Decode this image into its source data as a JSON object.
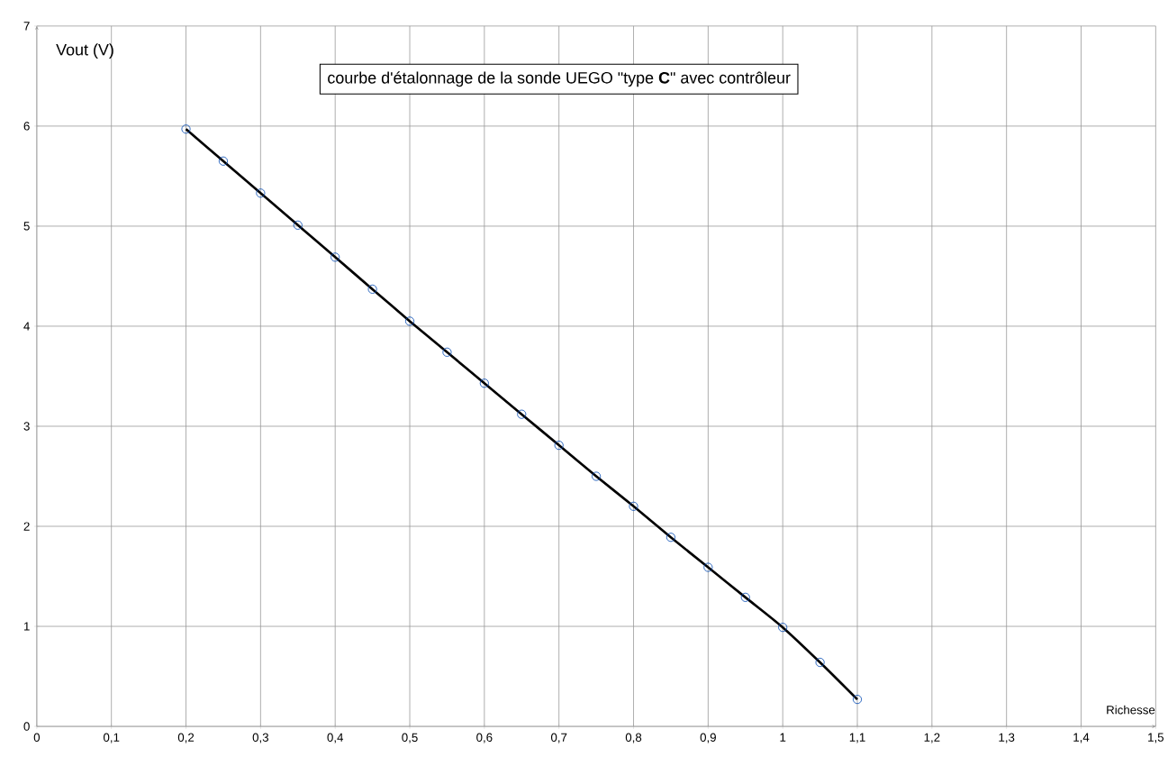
{
  "chart_data": {
    "type": "line",
    "title": "courbe d'étalonnage de la sonde UEGO \"type **C**\" avec contrôleur",
    "xlabel": "Richesse",
    "ylabel": "Vout (V)",
    "x": [
      0.2,
      0.25,
      0.3,
      0.35,
      0.4,
      0.45,
      0.5,
      0.55,
      0.6,
      0.65,
      0.7,
      0.75,
      0.8,
      0.85,
      0.9,
      0.95,
      1.0,
      1.05,
      1.1
    ],
    "series": [
      {
        "color": "#000000",
        "values": [
          5.97,
          5.65,
          5.33,
          5.01,
          4.69,
          4.37,
          4.05,
          3.74,
          3.43,
          3.12,
          2.81,
          2.5,
          2.2,
          1.89,
          1.59,
          1.29,
          0.99,
          0.64,
          0.27
        ]
      }
    ],
    "xlim": [
      0,
      1.5
    ],
    "ylim": [
      0,
      7
    ],
    "xticks": [
      0,
      {
        "value": 0.1,
        "label": "0,1"
      },
      {
        "value": 0.2,
        "label": "0,2"
      },
      {
        "value": 0.3,
        "label": "0,3"
      },
      {
        "value": 0.4,
        "label": "0,4"
      },
      {
        "value": 0.5,
        "label": "0,5"
      },
      {
        "value": 0.6,
        "label": "0,6"
      },
      {
        "value": 0.7,
        "label": "0,7"
      },
      {
        "value": 0.8,
        "label": "0,8"
      },
      {
        "value": 0.9,
        "label": "0,9"
      },
      1,
      {
        "value": 1.1,
        "label": "1,1"
      },
      {
        "value": 1.2,
        "label": "1,2"
      },
      {
        "value": 1.3,
        "label": "1,3"
      },
      {
        "value": 1.4,
        "label": "1,4"
      },
      {
        "value": 1.5,
        "label": "1,5"
      }
    ],
    "yticks": [
      0,
      1,
      2,
      3,
      4,
      5,
      6,
      7
    ],
    "grid": true,
    "marker": "circle",
    "line_style": "solid"
  }
}
